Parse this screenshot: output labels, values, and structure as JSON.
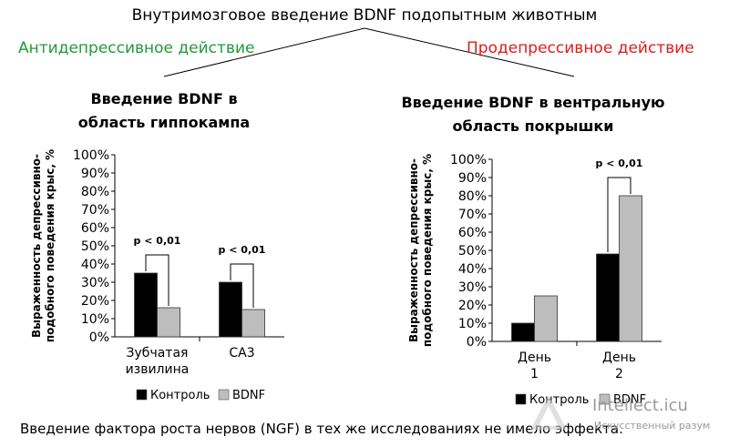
{
  "header": {
    "title": "Внутримозговое введение BDNF подопытным животным",
    "left_effect": "Антидепрессивное действие",
    "right_effect": "Продепрессивное  действие",
    "colors": {
      "left_effect": "#1f9a3a",
      "right_effect": "#e01b1b",
      "control": "#000000",
      "bdnf": "#bdbdbd"
    }
  },
  "footnote": "Введение фактора роста нервов (NGF) в тех же исследованиях не имело эффекта.",
  "watermark": {
    "name": "Intellect.icu",
    "sub": "Искусственный разум"
  },
  "chart_data": [
    {
      "type": "bar",
      "title": "Введение BDNF в область гиппокампа",
      "ylabel": "Выраженность депрессивно-подобного поведения крыс, %",
      "ylim": [
        0,
        100
      ],
      "yticks": [
        "0%",
        "10%",
        "20%",
        "30%",
        "40%",
        "50%",
        "60%",
        "70%",
        "80%",
        "90%",
        "100%"
      ],
      "categories": [
        "Зубчатая извилина",
        "СА3"
      ],
      "series": [
        {
          "name": "Контроль",
          "color": "#000000",
          "values": [
            35,
            30
          ]
        },
        {
          "name": "BDNF",
          "color": "#bdbdbd",
          "values": [
            16,
            15
          ]
        }
      ],
      "annotations": [
        "p < 0,01",
        "p < 0,01"
      ],
      "legend": "bottom"
    },
    {
      "type": "bar",
      "title": "Введение BDNF в вентральную область покрышки",
      "ylabel": "Выраженность депрессивно-подобного поведения крыс, %",
      "ylim": [
        0,
        100
      ],
      "yticks": [
        "0%",
        "10%",
        "20%",
        "30%",
        "40%",
        "50%",
        "60%",
        "70%",
        "80%",
        "90%",
        "100%"
      ],
      "categories": [
        "День 1",
        "День 2"
      ],
      "series": [
        {
          "name": "Контроль",
          "color": "#000000",
          "values": [
            10,
            48
          ]
        },
        {
          "name": "BDNF",
          "color": "#bdbdbd",
          "values": [
            25,
            80
          ]
        }
      ],
      "annotations": [
        "",
        "p < 0,01"
      ],
      "legend": "bottom"
    }
  ]
}
